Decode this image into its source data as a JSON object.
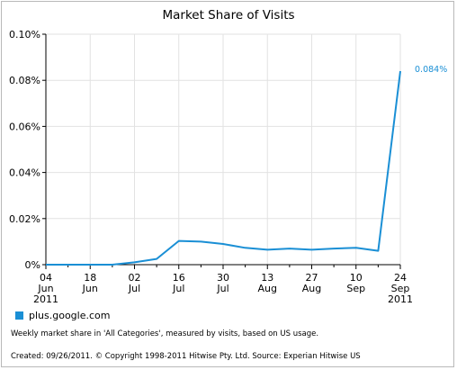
{
  "chart_data": {
    "type": "line",
    "title": "Market Share of Visits",
    "ylim": [
      0,
      0.1
    ],
    "y_ticks": [
      "0%",
      "0.02%",
      "0.04%",
      "0.06%",
      "0.08%",
      "0.10%"
    ],
    "y_tick_values": [
      0,
      0.02,
      0.04,
      0.06,
      0.08,
      0.1
    ],
    "x_tick_labels": [
      [
        "04",
        "Jun",
        "2011"
      ],
      [
        "18",
        "Jun",
        ""
      ],
      [
        "02",
        "Jul",
        ""
      ],
      [
        "16",
        "Jul",
        ""
      ],
      [
        "30",
        "Jul",
        ""
      ],
      [
        "13",
        "Aug",
        ""
      ],
      [
        "27",
        "Aug",
        ""
      ],
      [
        "10",
        "Sep",
        ""
      ],
      [
        "24",
        "Sep",
        "2011"
      ]
    ],
    "x": [
      "2011-06-04",
      "2011-06-11",
      "2011-06-18",
      "2011-06-25",
      "2011-07-02",
      "2011-07-09",
      "2011-07-16",
      "2011-07-23",
      "2011-07-30",
      "2011-08-06",
      "2011-08-13",
      "2011-08-20",
      "2011-08-27",
      "2011-09-03",
      "2011-09-10",
      "2011-09-17",
      "2011-09-24"
    ],
    "series": [
      {
        "name": "plus.google.com",
        "color": "#1a8fd5",
        "values": [
          0,
          0,
          0,
          0,
          0.001,
          0.0025,
          0.0103,
          0.01,
          0.009,
          0.0073,
          0.0065,
          0.007,
          0.0065,
          0.007,
          0.0073,
          0.006,
          0.084
        ],
        "end_label": "0.084%"
      }
    ],
    "grid": true,
    "legend_placement": "bottom-left"
  },
  "footnote": "Weekly market share in 'All Categories', measured by visits, based on US usage.",
  "footer": "Created: 09/26/2011. © Copyright 1998-2011 Hitwise Pty. Ltd.    Source: Experian Hitwise US"
}
